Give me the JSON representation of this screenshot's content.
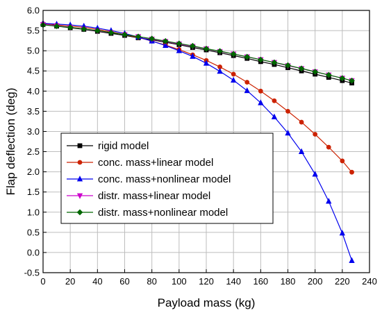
{
  "chart_data": {
    "type": "line",
    "xlabel": "Payload mass (kg)",
    "ylabel": "Flap deflection (deg)",
    "xlim": [
      0,
      240
    ],
    "ylim": [
      -0.5,
      6.0
    ],
    "xticks": [
      0,
      20,
      40,
      60,
      80,
      100,
      120,
      140,
      160,
      180,
      200,
      220,
      240
    ],
    "yticks": [
      -0.5,
      0.0,
      0.5,
      1.0,
      1.5,
      2.0,
      2.5,
      3.0,
      3.5,
      4.0,
      4.5,
      5.0,
      5.5,
      6.0
    ],
    "xtick_labels": [
      "0",
      "20",
      "40",
      "60",
      "80",
      "100",
      "120",
      "140",
      "160",
      "180",
      "200",
      "220",
      "240"
    ],
    "ytick_labels": [
      "-0.5",
      "0.0",
      "0.5",
      "1.0",
      "1.5",
      "2.0",
      "2.5",
      "3.0",
      "3.5",
      "4.0",
      "4.5",
      "5.0",
      "5.5",
      "6.0"
    ],
    "grid": true,
    "legend_position": "left-middle",
    "x": [
      0,
      10,
      20,
      30,
      40,
      50,
      60,
      70,
      80,
      90,
      100,
      110,
      120,
      130,
      140,
      150,
      160,
      170,
      180,
      190,
      200,
      210,
      220,
      227
    ],
    "series": [
      {
        "name": "rigid model",
        "color": "#000000",
        "marker": "square",
        "values": [
          5.65,
          5.61,
          5.57,
          5.53,
          5.48,
          5.43,
          5.38,
          5.32,
          5.27,
          5.21,
          5.15,
          5.08,
          5.02,
          4.95,
          4.88,
          4.81,
          4.73,
          4.66,
          4.58,
          4.5,
          4.42,
          4.34,
          4.26,
          4.2
        ]
      },
      {
        "name": "conc. mass+linear model",
        "color": "#cc2200",
        "marker": "circle",
        "values": [
          5.67,
          5.64,
          5.61,
          5.58,
          5.53,
          5.47,
          5.4,
          5.33,
          5.24,
          5.14,
          5.03,
          4.9,
          4.76,
          4.6,
          4.42,
          4.22,
          4.0,
          3.76,
          3.5,
          3.23,
          2.93,
          2.61,
          2.27,
          1.99
        ]
      },
      {
        "name": "conc. mass+nonlinear model",
        "color": "#0000ee",
        "marker": "triangle",
        "values": [
          5.68,
          5.66,
          5.64,
          5.61,
          5.56,
          5.5,
          5.43,
          5.34,
          5.24,
          5.13,
          5.0,
          4.86,
          4.69,
          4.49,
          4.27,
          4.01,
          3.71,
          3.36,
          2.96,
          2.5,
          1.94,
          1.27,
          0.48,
          -0.2
        ]
      },
      {
        "name": "distr. mass+linear model",
        "color": "#cc00cc",
        "marker": "triangle-down",
        "values": [
          5.65,
          5.62,
          5.58,
          5.54,
          5.49,
          5.45,
          5.4,
          5.35,
          5.29,
          5.23,
          5.17,
          5.11,
          5.05,
          4.98,
          4.92,
          4.85,
          4.78,
          4.71,
          4.63,
          4.56,
          4.48,
          4.4,
          4.32,
          4.26
        ]
      },
      {
        "name": "distr. mass+nonlinear model",
        "color": "#006600",
        "marker": "diamond",
        "values": [
          5.64,
          5.61,
          5.58,
          5.54,
          5.5,
          5.45,
          5.4,
          5.35,
          5.3,
          5.24,
          5.18,
          5.12,
          5.05,
          4.99,
          4.92,
          4.85,
          4.78,
          4.71,
          4.64,
          4.56,
          4.48,
          4.4,
          4.32,
          4.26
        ]
      }
    ]
  }
}
